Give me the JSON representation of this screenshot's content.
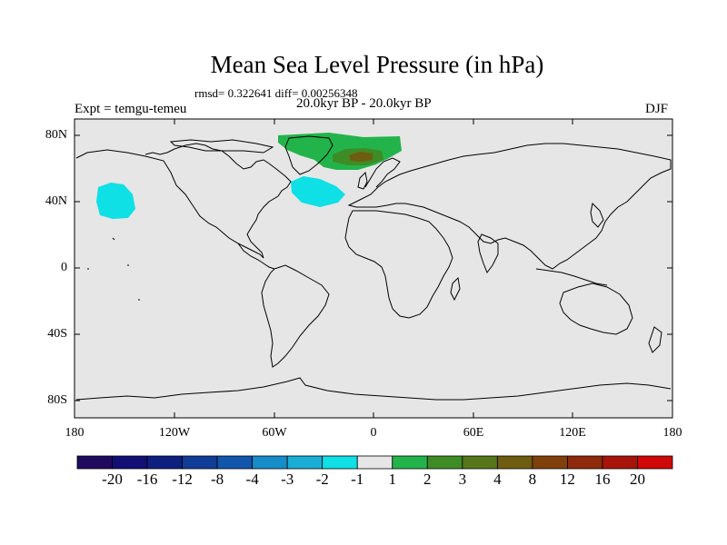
{
  "header": {
    "title": "Mean Sea Level Pressure (in hPa)",
    "stats": "rmsd= 0.322641 diff= 0.00256348",
    "experiment": "Expt = temgu-temeu",
    "period": "20.0kyr BP - 20.0kyr BP",
    "season": "DJF"
  },
  "axes": {
    "lat_ticks": [
      "80N",
      "40N",
      "0",
      "40S",
      "80S"
    ],
    "lon_ticks": [
      "180",
      "120W",
      "60W",
      "0",
      "60E",
      "120E",
      "180"
    ]
  },
  "colorbar": {
    "labels": [
      "-20",
      "-16",
      "-12",
      "-8",
      "-4",
      "-3",
      "-2",
      "-1",
      "1",
      "2",
      "3",
      "4",
      "8",
      "12",
      "16",
      "20"
    ],
    "colors": [
      "#1f0a5e",
      "#110f75",
      "#0d2080",
      "#0f3c96",
      "#1155ad",
      "#168dc9",
      "#1aaed6",
      "#0ee0e6",
      "#e6e6e6",
      "#22b44b",
      "#3e8c25",
      "#56761a",
      "#6e5c10",
      "#80400c",
      "#8f2a0a",
      "#a8140a",
      "#d00808"
    ]
  },
  "colors": {
    "land_sea_background": "#e6e6e6",
    "coastline": "#000000",
    "anomaly_positive_low": "#22b44b",
    "anomaly_positive_mid": "#3e8c25",
    "anomaly_positive_high": "#6e5c10",
    "anomaly_negative": "#0ee0e6"
  }
}
